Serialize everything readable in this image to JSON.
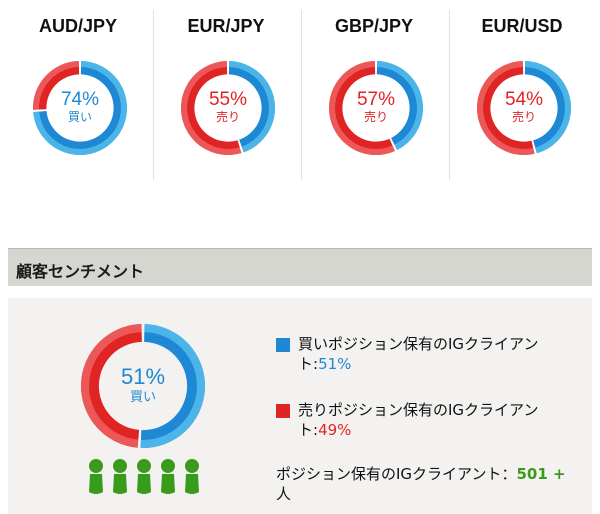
{
  "pairs": [
    {
      "name": "AUD/JPY",
      "percent_label": "74%",
      "side_label": "買い",
      "buy_fraction": 0.74,
      "dominant": "buy"
    },
    {
      "name": "EUR/JPY",
      "percent_label": "55%",
      "side_label": "売り",
      "buy_fraction": 0.45,
      "dominant": "sell"
    },
    {
      "name": "GBP/JPY",
      "percent_label": "57%",
      "side_label": "売り",
      "buy_fraction": 0.43,
      "dominant": "sell"
    },
    {
      "name": "EUR/USD",
      "percent_label": "54%",
      "side_label": "売り",
      "buy_fraction": 0.46,
      "dominant": "sell"
    }
  ],
  "section": {
    "title": "顧客センチメント"
  },
  "sentiment": {
    "percent_label": "51%",
    "side_label": "買い",
    "buy_fraction": 0.51,
    "buy_legend_text": "買いポジション保有のIGクライアント:",
    "buy_value": "51%",
    "sell_legend_text": "売りポジション保有のIGクライアント:",
    "sell_value": "49%",
    "clients_text": "ポジション保有のIGクライアント：",
    "clients_value": "501 +",
    "clients_unit": " 人",
    "people_icon_count": 5
  },
  "colors": {
    "buy": "#1e88d4",
    "buy_light": "#5bc3f0",
    "sell": "#e02424",
    "sell_light": "#f06a6a",
    "people": "#3a9a1a"
  }
}
